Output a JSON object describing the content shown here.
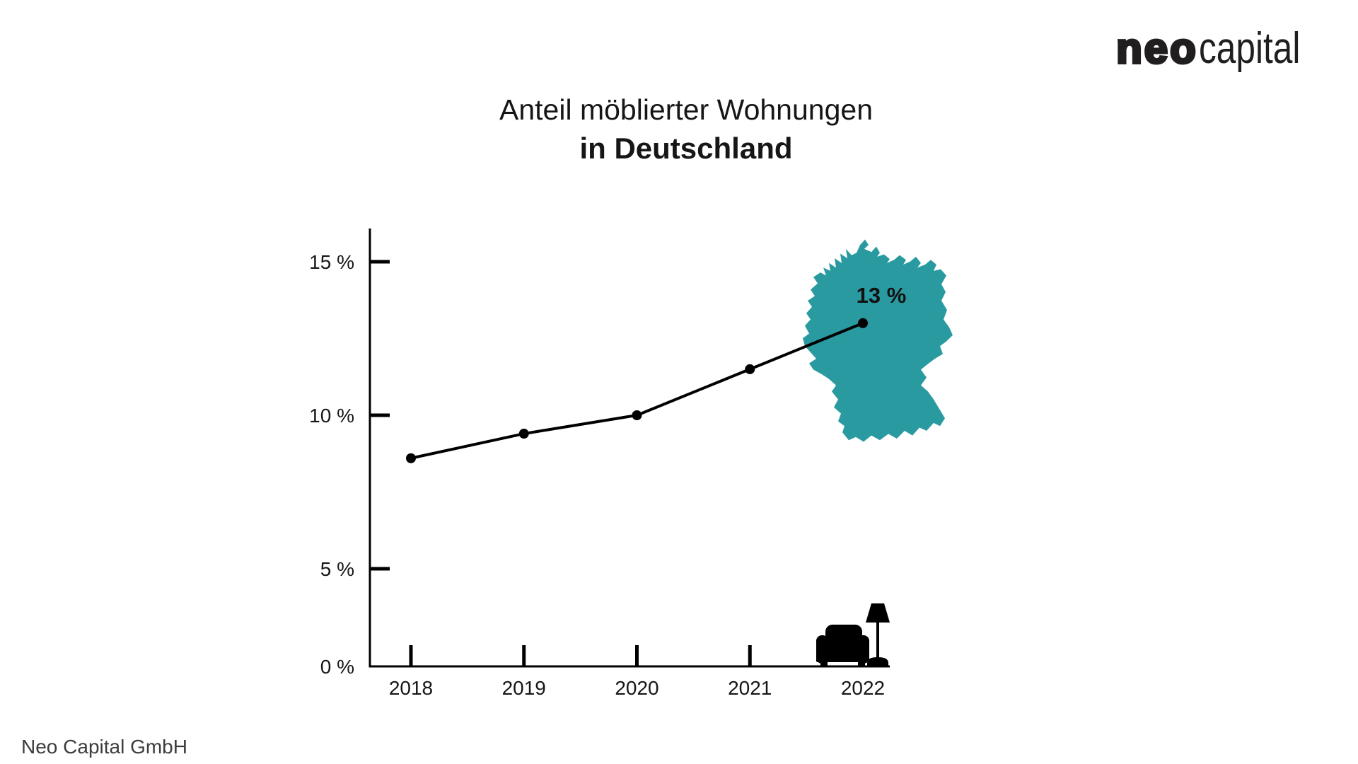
{
  "page": {
    "background": "#ffffff"
  },
  "logo": {
    "part1": "neo",
    "part2": "capital",
    "color": "#211e1f"
  },
  "title": {
    "line1": "Anteil möblierter Wohnungen",
    "line2": "in Deutschland"
  },
  "map": {
    "label": "germany-map",
    "color": "#2A9AA1",
    "annotation": "13 %"
  },
  "chart_data": {
    "type": "line",
    "title": "Anteil möblierter Wohnungen in Deutschland",
    "categories": [
      "2018",
      "2019",
      "2020",
      "2021",
      "2022"
    ],
    "values": [
      8.6,
      9.4,
      10.0,
      11.5,
      13.0
    ],
    "unit": "%",
    "xlabel": "",
    "ylabel": "",
    "ylim": [
      0,
      16
    ],
    "y_ticks": [
      {
        "label": "15 %",
        "value": 15
      },
      {
        "label": "10 %",
        "value": 10
      },
      {
        "label": "5 %",
        "value": 5
      },
      {
        "label": "0 %",
        "value": 0
      }
    ],
    "grid": false,
    "legend": false,
    "line_color": "#000000",
    "point_color": "#000000",
    "annotation": {
      "text": "13 %",
      "category": "2022",
      "value": 13
    }
  },
  "footer": {
    "text": "Neo Capital GmbH"
  }
}
